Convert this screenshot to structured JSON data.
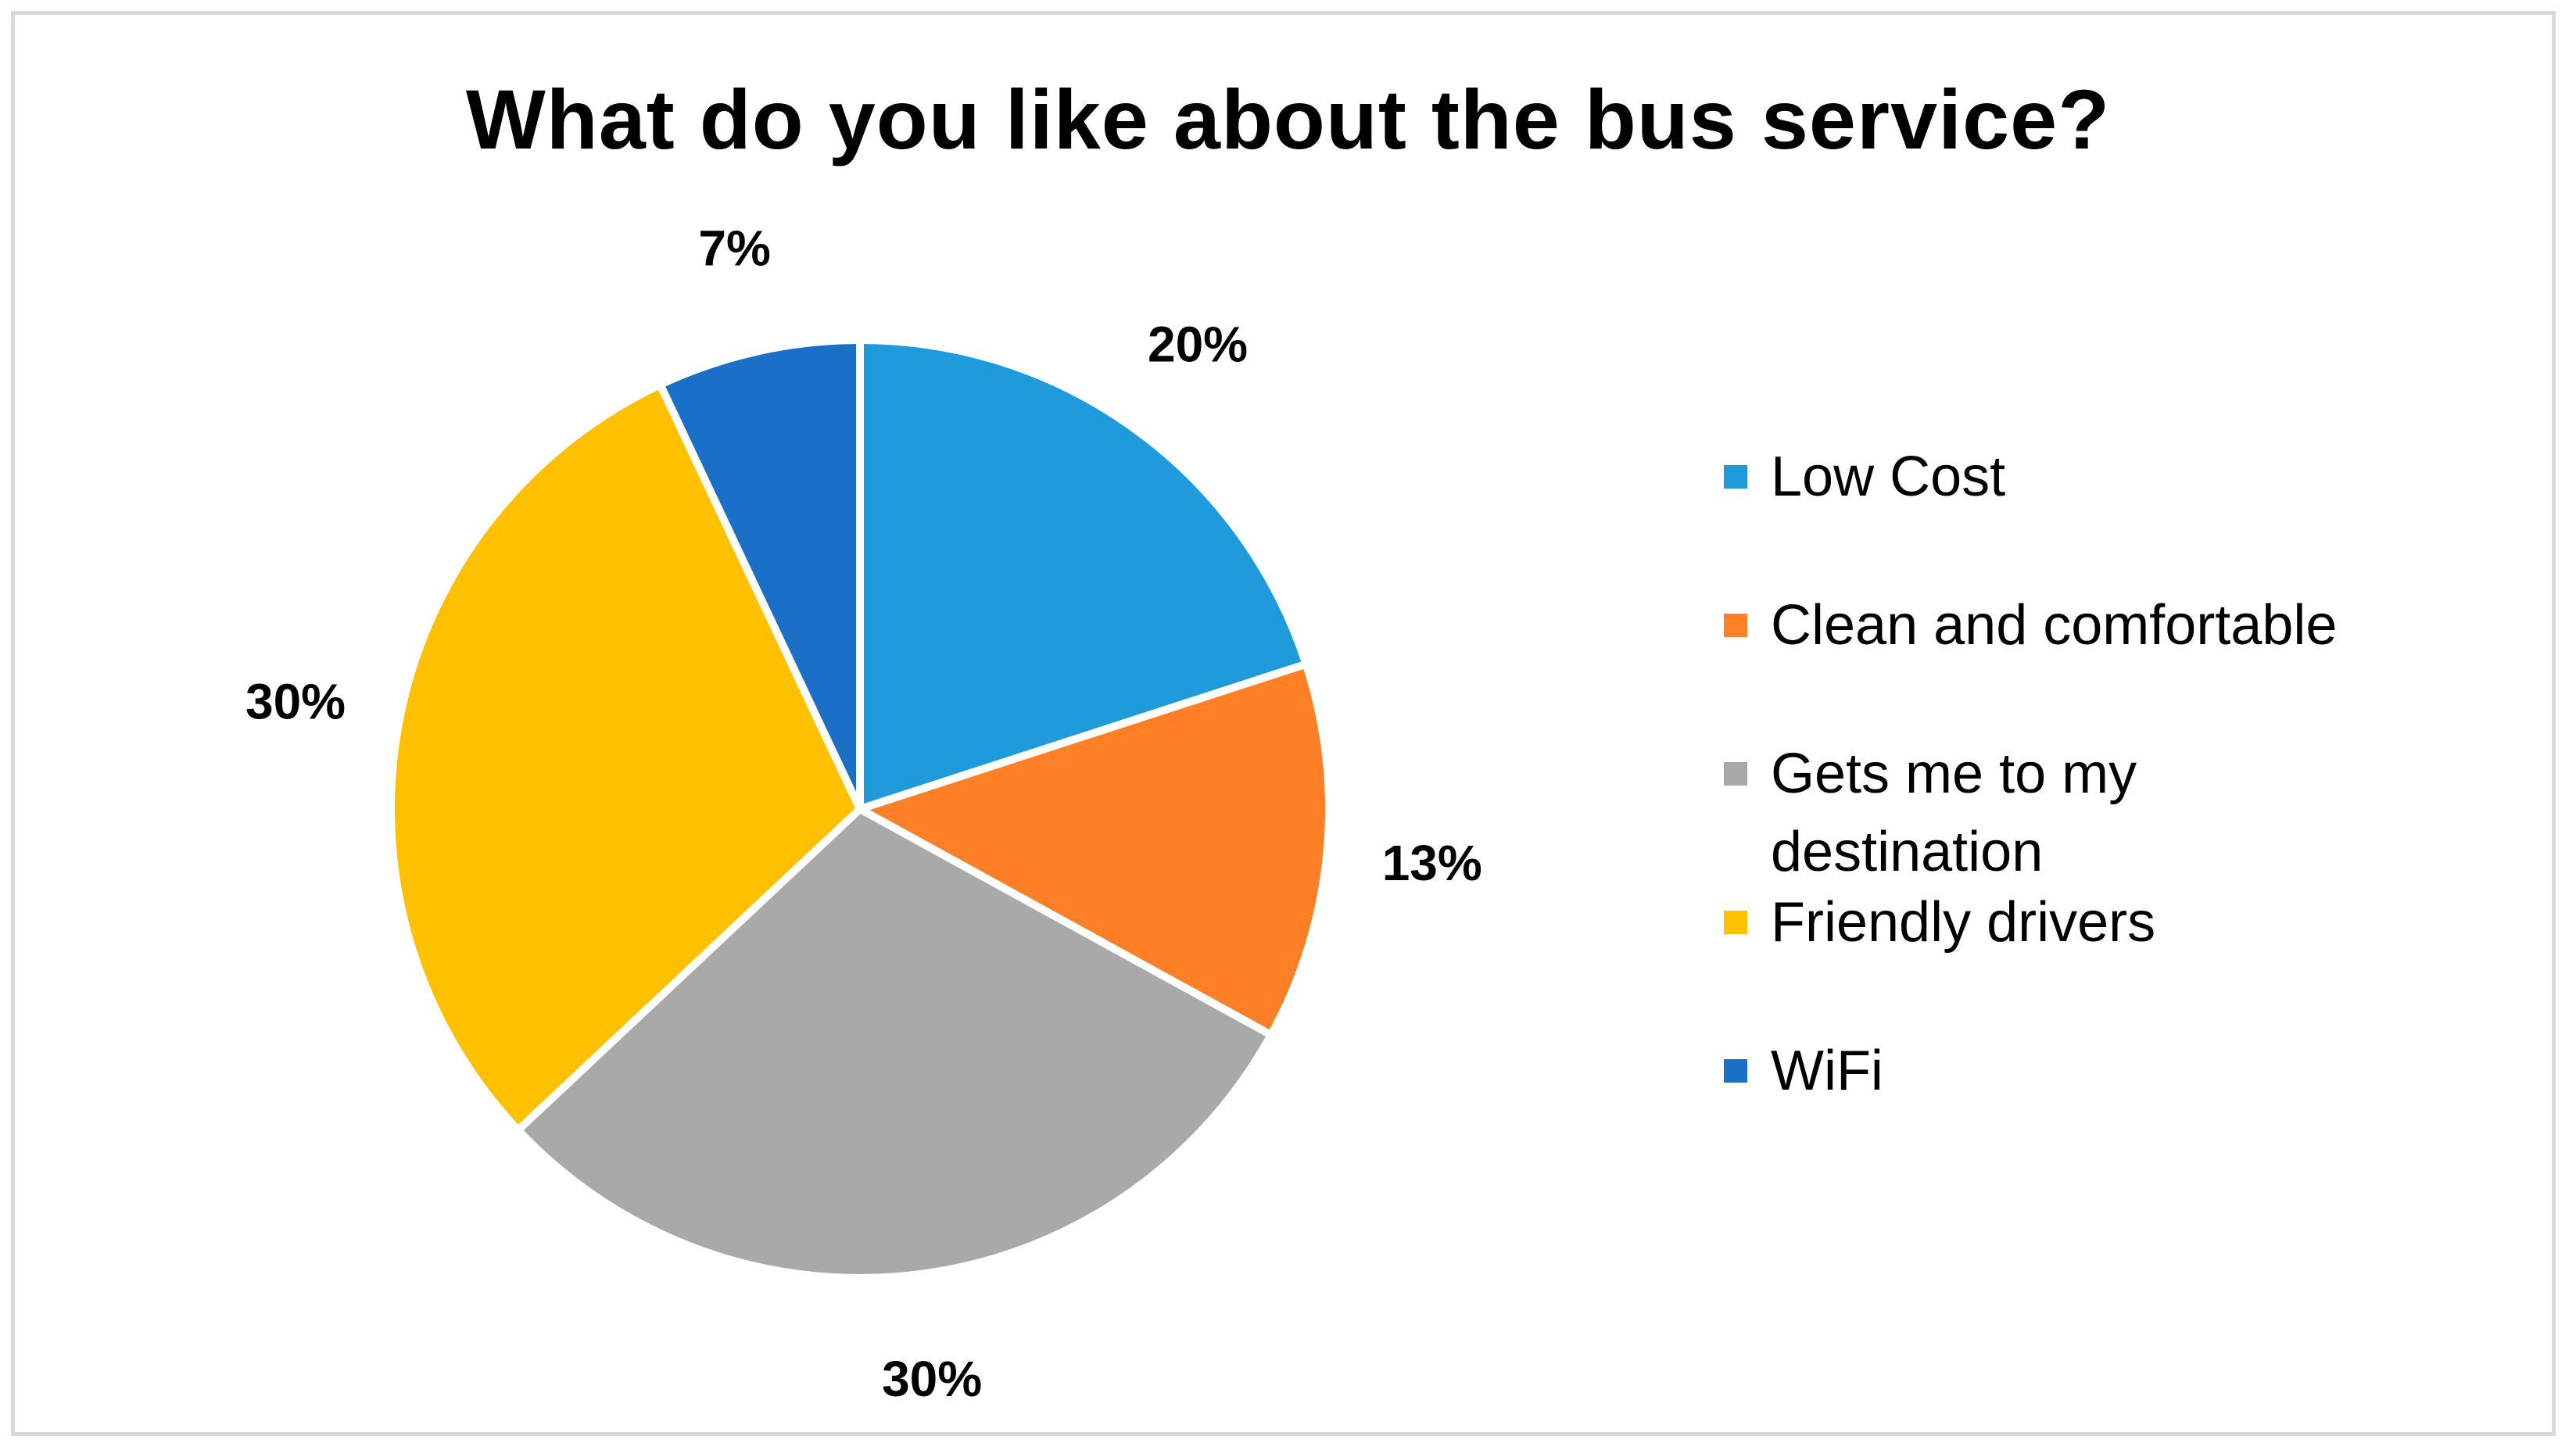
{
  "chart_data": {
    "type": "pie",
    "title": "What do you like about the bus service?",
    "categories": [
      "Low Cost",
      "Clean and comfortable",
      "Gets me to my destination",
      "Friendly drivers",
      "WiFi"
    ],
    "values": [
      20,
      13,
      30,
      30,
      7
    ],
    "data_labels": [
      "20%",
      "13%",
      "30%",
      "30%",
      "7%"
    ],
    "colors": [
      "#1F9BDB",
      "#FF7F27",
      "#A9A9A9",
      "#FFC000",
      "#1A6FC7"
    ],
    "legend_position": "right",
    "start_angle": "12 o'clock",
    "direction": "clockwise"
  }
}
